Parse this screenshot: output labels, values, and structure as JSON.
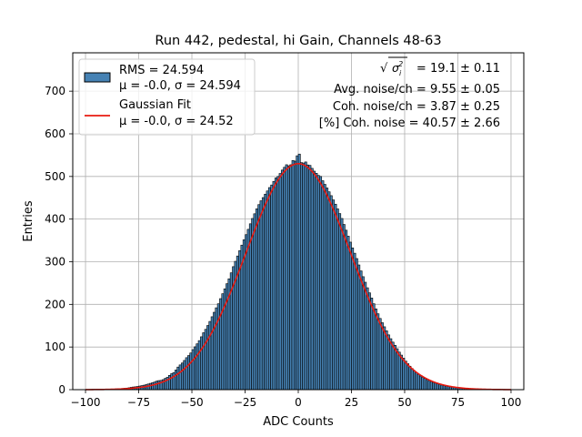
{
  "chart_data": {
    "type": "bar",
    "title": "Run 442, pedestal, hi Gain, Channels 48-63",
    "xlabel": "ADC Counts",
    "ylabel": "Entries",
    "xlim": [
      -106,
      106
    ],
    "ylim": [
      0,
      790
    ],
    "xticks": [
      -100,
      -75,
      -50,
      -25,
      0,
      25,
      50,
      75,
      100
    ],
    "yticks": [
      0,
      100,
      200,
      300,
      400,
      500,
      600,
      700
    ],
    "grid": true,
    "legend_position": "top-left",
    "bin_width": 1,
    "histogram": {
      "name": "RMS = 24.594",
      "name_line2": "μ = -0.0, σ = 24.594",
      "color": "#4682b4",
      "edge_color": "#000000",
      "counts": [
        {
          "x": -100,
          "y": 0
        },
        {
          "x": -96,
          "y": 1
        },
        {
          "x": -92,
          "y": 1
        },
        {
          "x": -88,
          "y": 1
        },
        {
          "x": -85,
          "y": 2
        },
        {
          "x": -82,
          "y": 3
        },
        {
          "x": -80,
          "y": 4
        },
        {
          "x": -78,
          "y": 6
        },
        {
          "x": -76,
          "y": 7
        },
        {
          "x": -74,
          "y": 9
        },
        {
          "x": -72,
          "y": 11
        },
        {
          "x": -70,
          "y": 14
        },
        {
          "x": -68,
          "y": 17
        },
        {
          "x": -66,
          "y": 21
        },
        {
          "x": -64,
          "y": 22
        },
        {
          "x": -62,
          "y": 28
        },
        {
          "x": -61,
          "y": 30
        },
        {
          "x": -60,
          "y": 37
        },
        {
          "x": -59,
          "y": 38
        },
        {
          "x": -58,
          "y": 42
        },
        {
          "x": -57,
          "y": 50
        },
        {
          "x": -56,
          "y": 56
        },
        {
          "x": -55,
          "y": 60
        },
        {
          "x": -54,
          "y": 65
        },
        {
          "x": -53,
          "y": 72
        },
        {
          "x": -52,
          "y": 78
        },
        {
          "x": -51,
          "y": 82
        },
        {
          "x": -50,
          "y": 90
        },
        {
          "x": -49,
          "y": 98
        },
        {
          "x": -48,
          "y": 103
        },
        {
          "x": -47,
          "y": 112
        },
        {
          "x": -46,
          "y": 118
        },
        {
          "x": -45,
          "y": 130
        },
        {
          "x": -44,
          "y": 137
        },
        {
          "x": -43,
          "y": 146
        },
        {
          "x": -42,
          "y": 155
        },
        {
          "x": -41,
          "y": 165
        },
        {
          "x": -40,
          "y": 177
        },
        {
          "x": -39,
          "y": 186
        },
        {
          "x": -38,
          "y": 198
        },
        {
          "x": -37,
          "y": 205
        },
        {
          "x": -36,
          "y": 222
        },
        {
          "x": -35,
          "y": 228
        },
        {
          "x": -34,
          "y": 245
        },
        {
          "x": -33,
          "y": 252
        },
        {
          "x": -32,
          "y": 268
        },
        {
          "x": -31,
          "y": 280
        },
        {
          "x": -30,
          "y": 297
        },
        {
          "x": -29,
          "y": 305
        },
        {
          "x": -28,
          "y": 322
        },
        {
          "x": -27,
          "y": 330
        },
        {
          "x": -26,
          "y": 348
        },
        {
          "x": -25,
          "y": 355
        },
        {
          "x": -24,
          "y": 372
        },
        {
          "x": -23,
          "y": 380
        },
        {
          "x": -22,
          "y": 398
        },
        {
          "x": -21,
          "y": 405
        },
        {
          "x": -20,
          "y": 420
        },
        {
          "x": -19,
          "y": 428
        },
        {
          "x": -18,
          "y": 440
        },
        {
          "x": -17,
          "y": 446
        },
        {
          "x": -16,
          "y": 455
        },
        {
          "x": -15,
          "y": 462
        },
        {
          "x": -14,
          "y": 470
        },
        {
          "x": -13,
          "y": 478
        },
        {
          "x": -12,
          "y": 482
        },
        {
          "x": -11,
          "y": 495
        },
        {
          "x": -10,
          "y": 498
        },
        {
          "x": -9,
          "y": 502
        },
        {
          "x": -8,
          "y": 512
        },
        {
          "x": -7,
          "y": 518
        },
        {
          "x": -6,
          "y": 525
        },
        {
          "x": -5,
          "y": 530
        },
        {
          "x": -4,
          "y": 520
        },
        {
          "x": -3,
          "y": 535
        },
        {
          "x": -2,
          "y": 540
        },
        {
          "x": -1,
          "y": 532
        },
        {
          "x": 0,
          "y": 565
        },
        {
          "x": 1,
          "y": 540
        },
        {
          "x": 2,
          "y": 525
        },
        {
          "x": 3,
          "y": 538
        },
        {
          "x": 4,
          "y": 530
        },
        {
          "x": 5,
          "y": 524
        },
        {
          "x": 6,
          "y": 528
        },
        {
          "x": 7,
          "y": 510
        },
        {
          "x": 8,
          "y": 515
        },
        {
          "x": 9,
          "y": 500
        },
        {
          "x": 10,
          "y": 505
        },
        {
          "x": 11,
          "y": 495
        },
        {
          "x": 12,
          "y": 485
        },
        {
          "x": 13,
          "y": 478
        },
        {
          "x": 14,
          "y": 468
        },
        {
          "x": 15,
          "y": 460
        },
        {
          "x": 16,
          "y": 450
        },
        {
          "x": 17,
          "y": 440
        },
        {
          "x": 18,
          "y": 430
        },
        {
          "x": 19,
          "y": 418
        },
        {
          "x": 20,
          "y": 408
        },
        {
          "x": 21,
          "y": 395
        },
        {
          "x": 22,
          "y": 380
        },
        {
          "x": 23,
          "y": 368
        },
        {
          "x": 24,
          "y": 352
        },
        {
          "x": 25,
          "y": 340
        },
        {
          "x": 26,
          "y": 325
        },
        {
          "x": 27,
          "y": 315
        },
        {
          "x": 28,
          "y": 300
        },
        {
          "x": 29,
          "y": 285
        },
        {
          "x": 30,
          "y": 272
        },
        {
          "x": 31,
          "y": 258
        },
        {
          "x": 32,
          "y": 246
        },
        {
          "x": 33,
          "y": 232
        },
        {
          "x": 34,
          "y": 222
        },
        {
          "x": 35,
          "y": 208
        },
        {
          "x": 36,
          "y": 195
        },
        {
          "x": 37,
          "y": 184
        },
        {
          "x": 38,
          "y": 172
        },
        {
          "x": 39,
          "y": 162
        },
        {
          "x": 40,
          "y": 152
        },
        {
          "x": 41,
          "y": 143
        },
        {
          "x": 42,
          "y": 133
        },
        {
          "x": 43,
          "y": 124
        },
        {
          "x": 44,
          "y": 115
        },
        {
          "x": 45,
          "y": 108
        },
        {
          "x": 46,
          "y": 100
        },
        {
          "x": 47,
          "y": 92
        },
        {
          "x": 48,
          "y": 84
        },
        {
          "x": 49,
          "y": 78
        },
        {
          "x": 50,
          "y": 70
        },
        {
          "x": 51,
          "y": 64
        },
        {
          "x": 52,
          "y": 58
        },
        {
          "x": 53,
          "y": 52
        },
        {
          "x": 54,
          "y": 47
        },
        {
          "x": 55,
          "y": 42
        },
        {
          "x": 56,
          "y": 38
        },
        {
          "x": 57,
          "y": 34
        },
        {
          "x": 58,
          "y": 30
        },
        {
          "x": 60,
          "y": 25
        },
        {
          "x": 62,
          "y": 20
        },
        {
          "x": 64,
          "y": 16
        },
        {
          "x": 66,
          "y": 13
        },
        {
          "x": 68,
          "y": 10
        },
        {
          "x": 70,
          "y": 8
        },
        {
          "x": 72,
          "y": 6
        },
        {
          "x": 74,
          "y": 5
        },
        {
          "x": 76,
          "y": 4
        },
        {
          "x": 78,
          "y": 3
        },
        {
          "x": 80,
          "y": 2
        },
        {
          "x": 83,
          "y": 2
        },
        {
          "x": 86,
          "y": 1
        },
        {
          "x": 90,
          "y": 1
        },
        {
          "x": 95,
          "y": 1
        },
        {
          "x": 100,
          "y": 0
        }
      ]
    },
    "fit": {
      "name": "Gaussian Fit",
      "name_line2": "μ = -0.0, σ = 24.52",
      "color": "#e8190f",
      "mu": 0.0,
      "sigma": 24.52,
      "amplitude": 530,
      "x_range": [
        -100,
        100
      ]
    },
    "annotations": {
      "sigma_total_value": " = 19.1 ± 0.11",
      "avg_noise": "Avg. noise/ch = 9.55 ± 0.05",
      "coh_noise": "Coh. noise/ch = 3.87 ± 0.25",
      "coh_percent": "[%] Coh. noise = 40.57 ± 2.66"
    }
  }
}
